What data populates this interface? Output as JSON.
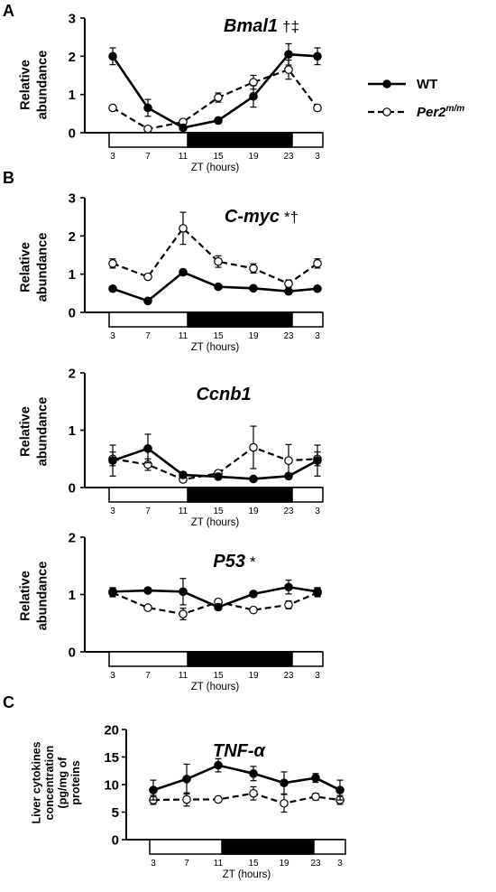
{
  "legend": {
    "wt_label": "WT",
    "per2_base": "Per2",
    "per2_sup": "m/m",
    "wt_color": "#000000",
    "per2_fill": "#ffffff"
  },
  "chart_data": [
    {
      "type": "line",
      "panel_letter": "A",
      "title": "Bmal1",
      "title_mark": "†‡",
      "ylabel": [
        "Relative",
        "abundance"
      ],
      "xlabel": "ZT (hours)",
      "x": [
        3,
        7,
        11,
        15,
        19,
        23,
        3
      ],
      "ylim": [
        0,
        3
      ],
      "yticks": [
        0,
        1,
        2,
        3
      ],
      "light_dark": [
        "light",
        "dark",
        "dark",
        "light"
      ],
      "series": [
        {
          "name": "WT",
          "style": "solid-filled",
          "values": [
            2.0,
            0.65,
            0.13,
            0.32,
            0.95,
            2.05,
            2.0
          ],
          "errors": [
            0.22,
            0.22,
            0.05,
            0.08,
            0.28,
            0.28,
            0.22
          ]
        },
        {
          "name": "Per2m/m",
          "style": "dashed-open",
          "values": [
            0.65,
            0.1,
            0.28,
            0.92,
            1.32,
            1.65,
            0.65
          ],
          "errors": [
            0.06,
            0.03,
            0.05,
            0.12,
            0.18,
            0.25,
            0.06
          ]
        }
      ]
    },
    {
      "type": "line",
      "panel_letter": "B",
      "title": "C-myc",
      "title_mark": "*†",
      "ylabel": [
        "Relative",
        "abundance"
      ],
      "xlabel": "ZT (hours)",
      "x": [
        3,
        7,
        11,
        15,
        19,
        23,
        3
      ],
      "ylim": [
        0,
        3
      ],
      "yticks": [
        0,
        1,
        2,
        3
      ],
      "light_dark": [
        "light",
        "dark",
        "dark",
        "light"
      ],
      "series": [
        {
          "name": "WT",
          "style": "solid-filled",
          "values": [
            0.62,
            0.3,
            1.05,
            0.67,
            0.63,
            0.55,
            0.62
          ],
          "errors": [
            0.03,
            0.03,
            0.05,
            0.03,
            0.03,
            0.04,
            0.03
          ]
        },
        {
          "name": "Per2m/m",
          "style": "dashed-open",
          "values": [
            1.28,
            0.93,
            2.2,
            1.33,
            1.15,
            0.75,
            1.28
          ],
          "errors": [
            0.12,
            0.05,
            0.42,
            0.15,
            0.12,
            0.1,
            0.12
          ]
        }
      ]
    },
    {
      "type": "line",
      "panel_letter": "",
      "title": "Ccnb1",
      "title_mark": "",
      "ylabel": [
        "Relative",
        "abundance"
      ],
      "xlabel": "ZT (hours)",
      "x": [
        3,
        7,
        11,
        15,
        19,
        23,
        3
      ],
      "ylim": [
        0,
        2
      ],
      "yticks": [
        0,
        1,
        2
      ],
      "light_dark": [
        "light",
        "dark",
        "dark",
        "light"
      ],
      "series": [
        {
          "name": "WT",
          "style": "solid-filled",
          "values": [
            0.47,
            0.68,
            0.22,
            0.19,
            0.15,
            0.2,
            0.47
          ],
          "errors": [
            0.27,
            0.25,
            0.05,
            0.03,
            0.03,
            0.05,
            0.27
          ]
        },
        {
          "name": "Per2m/m",
          "style": "dashed-open",
          "values": [
            0.5,
            0.4,
            0.14,
            0.25,
            0.7,
            0.47,
            0.5
          ],
          "errors": [
            0.12,
            0.1,
            0.04,
            0.05,
            0.37,
            0.28,
            0.12
          ]
        }
      ]
    },
    {
      "type": "line",
      "panel_letter": "",
      "title": "P53",
      "title_mark": "*",
      "ylabel": [
        "Relative",
        "abundance"
      ],
      "xlabel": "ZT (hours)",
      "x": [
        3,
        7,
        11,
        15,
        19,
        23,
        3
      ],
      "ylim": [
        0,
        2
      ],
      "yticks": [
        0,
        1,
        2
      ],
      "light_dark": [
        "light",
        "dark",
        "dark",
        "light"
      ],
      "series": [
        {
          "name": "WT",
          "style": "solid-filled",
          "values": [
            1.05,
            1.07,
            1.05,
            0.78,
            1.01,
            1.13,
            1.05
          ],
          "errors": [
            0.07,
            0.03,
            0.23,
            0.05,
            0.05,
            0.12,
            0.07
          ]
        },
        {
          "name": "Per2m/m",
          "style": "dashed-open",
          "values": [
            1.03,
            0.77,
            0.66,
            0.87,
            0.73,
            0.82,
            1.03
          ],
          "errors": [
            0.07,
            0.04,
            0.1,
            0.05,
            0.04,
            0.07,
            0.07
          ]
        }
      ]
    },
    {
      "type": "line",
      "panel_letter": "C",
      "title": "TNF-α",
      "title_mark": "",
      "ylabel": [
        "Liver cytokines",
        "concentration",
        "(pg/mg of",
        "proteins"
      ],
      "xlabel": "ZT (hours)",
      "x": [
        3,
        7,
        11,
        15,
        19,
        23,
        3
      ],
      "ylim": [
        0,
        20
      ],
      "yticks": [
        0,
        5,
        10,
        15,
        20
      ],
      "light_dark": [
        "light",
        "dark",
        "dark",
        "light"
      ],
      "series": [
        {
          "name": "WT",
          "style": "solid-filled",
          "values": [
            9.0,
            11.0,
            13.5,
            12.0,
            10.3,
            11.2,
            9.0
          ],
          "errors": [
            1.8,
            2.7,
            1.2,
            1.3,
            2.0,
            0.8,
            1.8
          ]
        },
        {
          "name": "Per2m/m",
          "style": "dashed-open",
          "values": [
            7.2,
            7.3,
            7.3,
            8.4,
            6.6,
            7.8,
            7.2
          ],
          "errors": [
            0.8,
            1.2,
            0.4,
            1.2,
            1.6,
            0.6,
            0.8
          ]
        }
      ]
    }
  ]
}
